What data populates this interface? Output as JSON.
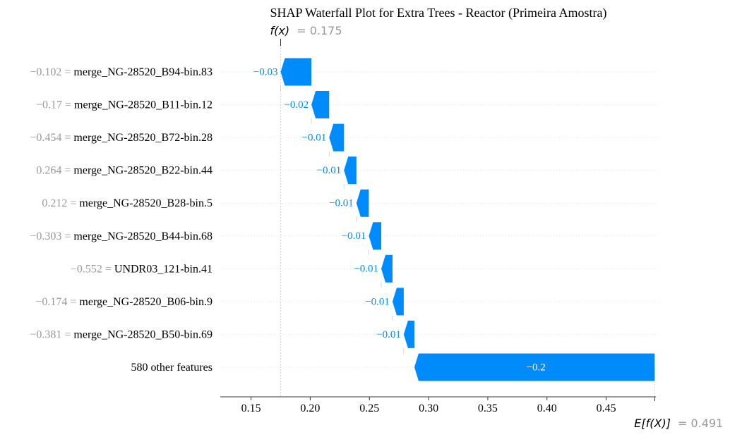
{
  "chart_data": {
    "type": "waterfall",
    "title": "SHAP Waterfall Plot for Extra Trees - Reactor (Primeira Amostra)",
    "fx_label": "f(x)",
    "fx_value": "= 0.175",
    "fx": 0.175,
    "efx_label": "E[f(X)]",
    "efx_value": "= 0.491",
    "efx": 0.491,
    "xlim": [
      0.124,
      0.492
    ],
    "xticks": [
      0.15,
      0.2,
      0.25,
      0.3,
      0.35,
      0.4,
      0.45
    ],
    "xtick_labels": [
      "0.15",
      "0.20",
      "0.25",
      "0.30",
      "0.35",
      "0.40",
      "0.45"
    ],
    "colors": {
      "negative": "#008bfb",
      "label_gray": "#999999",
      "text": "#000000",
      "grid": "#cccccc"
    },
    "features": [
      {
        "value_label": "−0.102 =",
        "name": "merge_NG-28520_B94-bin.83",
        "shap": -0.026,
        "shap_label": "−0.03",
        "end": 0.175
      },
      {
        "value_label": "−0.17 =",
        "name": "merge_NG-28520_B11-bin.12",
        "shap": -0.015,
        "shap_label": "−0.02",
        "end": 0.201
      },
      {
        "value_label": "−0.454 =",
        "name": "merge_NG-28520_B72-bin.28",
        "shap": -0.0125,
        "shap_label": "−0.01",
        "end": 0.216
      },
      {
        "value_label": "0.264 =",
        "name": "merge_NG-28520_B22-bin.44",
        "shap": -0.0105,
        "shap_label": "−0.01",
        "end": 0.2285
      },
      {
        "value_label": "0.212 =",
        "name": "merge_NG-28520_B28-bin.5",
        "shap": -0.0105,
        "shap_label": "−0.01",
        "end": 0.239
      },
      {
        "value_label": "−0.303 =",
        "name": "merge_NG-28520_B44-bin.68",
        "shap": -0.0105,
        "shap_label": "−0.01",
        "end": 0.2495
      },
      {
        "value_label": "−0.552 =",
        "name": "UNDR03_121-bin.41",
        "shap": -0.0095,
        "shap_label": "−0.01",
        "end": 0.26
      },
      {
        "value_label": "−0.174 =",
        "name": "merge_NG-28520_B06-bin.9",
        "shap": -0.0095,
        "shap_label": "−0.01",
        "end": 0.2695
      },
      {
        "value_label": "−0.381 =",
        "name": "merge_NG-28520_B50-bin.69",
        "shap": -0.009,
        "shap_label": "−0.01",
        "end": 0.279
      },
      {
        "value_label": "",
        "name": "580 other features",
        "shap": -0.203,
        "shap_label": "−0.2",
        "end": 0.288
      }
    ]
  }
}
